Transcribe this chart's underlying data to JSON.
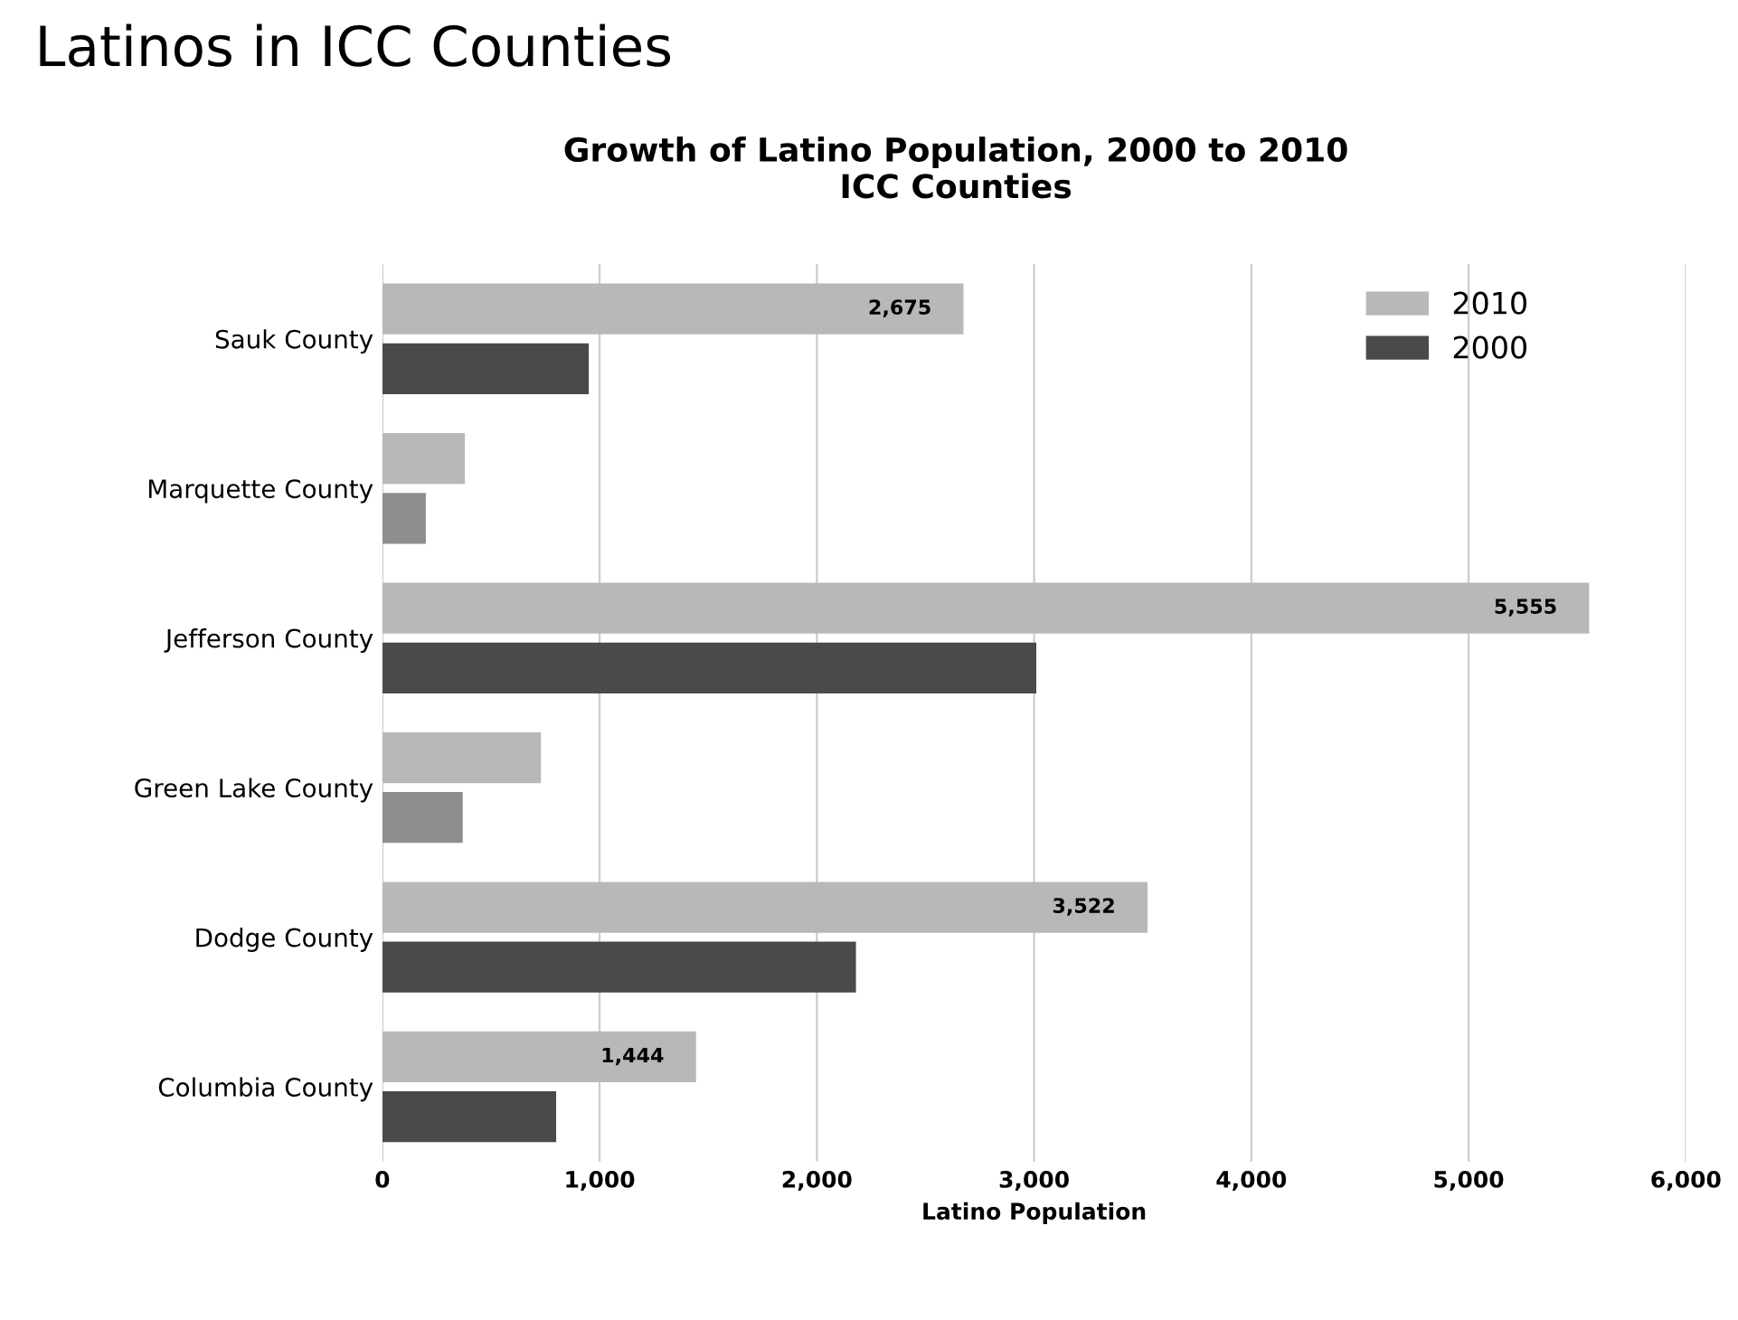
{
  "chart_data": {
    "type": "bar",
    "orientation": "horizontal",
    "title": "Latinos in ICC Counties",
    "subtitle": "Growth of Latino Population, 2000 to 2010\nICC Counties",
    "xlabel": "Latino Population",
    "categories": [
      "Sauk County",
      "Marquette County",
      "Jefferson County",
      "Green Lake County",
      "Dodge County",
      "Columbia County"
    ],
    "series": [
      {
        "name": "2010",
        "color": "#b8b8b8",
        "values": [
          2675,
          380,
          5555,
          730,
          3522,
          1444
        ],
        "value_labels": [
          "2,675",
          null,
          "5,555",
          null,
          "3,522",
          "1,444"
        ]
      },
      {
        "name": "2000",
        "color": "#4a4a4a",
        "colors": [
          "#4a4a4a",
          "#8e8e8e",
          "#4a4a4a",
          "#8e8e8e",
          "#4a4a4a",
          "#4a4a4a"
        ],
        "values": [
          950,
          200,
          3010,
          370,
          2180,
          800
        ]
      }
    ],
    "xlim": [
      0,
      6000
    ],
    "xticks": [
      {
        "value": 0,
        "label": "0"
      },
      {
        "value": 1000,
        "label": "1,000"
      },
      {
        "value": 2000,
        "label": "2,000"
      },
      {
        "value": 3000,
        "label": "3,000"
      },
      {
        "value": 4000,
        "label": "4,000"
      },
      {
        "value": 5000,
        "label": "5,000"
      },
      {
        "value": 6000,
        "label": "6,000"
      }
    ],
    "grid": "x",
    "legend": "top right"
  }
}
